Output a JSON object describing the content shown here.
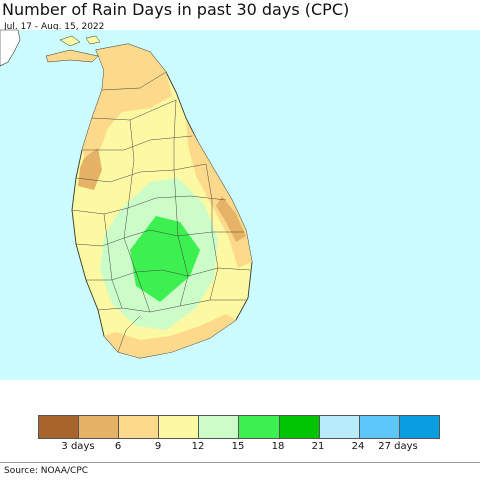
{
  "title": "Number of Rain Days in past 30 days (CPC)",
  "subtitle": "Jul. 17 - Aug. 15, 2022",
  "source": "Source: NOAA/CPC",
  "colors": {
    "ocean": "#ccfcff",
    "land_outside": "#ffffff",
    "boundary": "#333333"
  },
  "legend": {
    "colors": [
      "#a8642b",
      "#e6b265",
      "#fdd98b",
      "#fdf9a3",
      "#ccfdc8",
      "#3cf04f",
      "#00c400",
      "#b8ecfb",
      "#5ec7fa",
      "#0a9ee0"
    ],
    "labels": [
      "3 days",
      "6",
      "9",
      "12",
      "15",
      "18",
      "21",
      "24",
      "27 days"
    ]
  }
}
